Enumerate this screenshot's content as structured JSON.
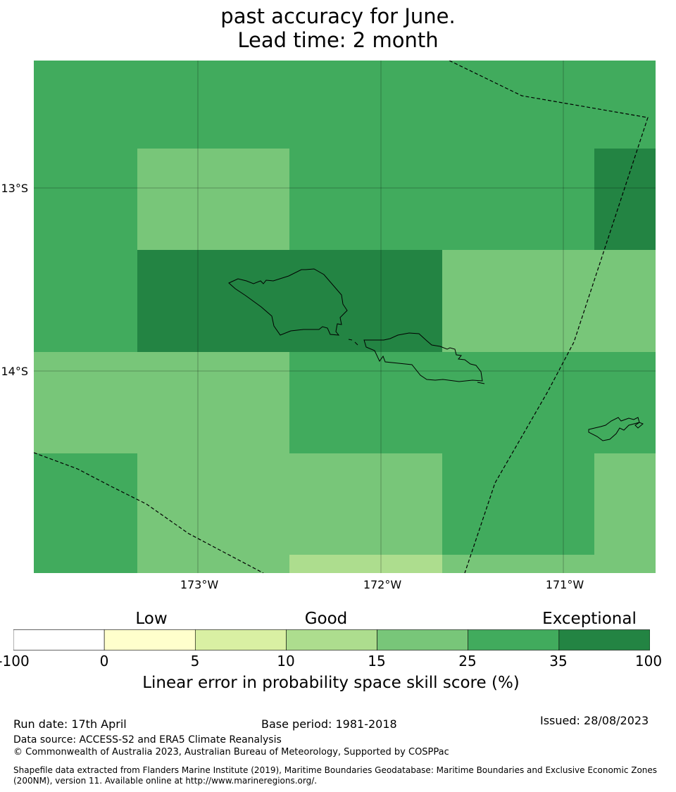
{
  "title": {
    "line1": "past accuracy for June.",
    "line2": "Lead time: 2 month"
  },
  "map": {
    "lat_labels": [
      "13°S",
      "14°S"
    ],
    "lon_labels": [
      "173°W",
      "172°W",
      "171°W"
    ],
    "level_colors": [
      "#ffffff",
      "#ffffcc",
      "#d9f0a3",
      "#addd8e",
      "#78c679",
      "#41ab5d",
      "#238443"
    ],
    "grid_rows": [
      [
        5,
        5,
        5,
        5,
        5,
        5
      ],
      [
        5,
        4,
        5,
        5,
        5,
        6
      ],
      [
        5,
        6,
        6,
        4,
        4,
        4
      ],
      [
        4,
        4,
        5,
        5,
        5,
        5
      ],
      [
        5,
        4,
        4,
        5,
        4,
        4
      ],
      [
        5,
        4,
        3,
        4,
        4,
        4
      ]
    ]
  },
  "legend": {
    "categories": [
      "Low",
      "Good",
      "Exceptional"
    ],
    "ticks": [
      "-100",
      "0",
      "5",
      "10",
      "15",
      "25",
      "35",
      "100"
    ],
    "title": "Linear error in probability space skill score (%)"
  },
  "footer": {
    "run_date": "Run date: 17th April",
    "base_period": "Base period: 1981-2018",
    "issued": "Issued: 28/08/2023",
    "data_source": "Data source: ACCESS-S2 and ERA5 Climate Reanalysis",
    "copyright": "© Commonwealth of Australia 2023, Australian Bureau of Meteorology, Supported by COSPPac",
    "shapefile": "Shapefile data extracted from Flanders Marine Institute (2019), Maritime Boundaries Geodatabase: Maritime Boundaries and Exclusive Economic Zones (200NM), version 11. Available online at http://www.marineregions.org/."
  }
}
